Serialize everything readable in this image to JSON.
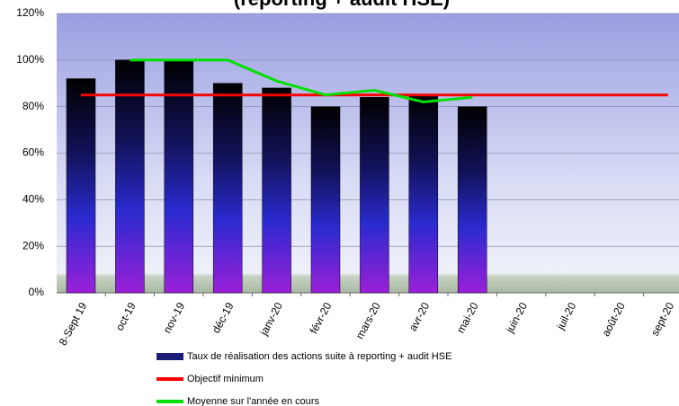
{
  "chart_data": {
    "type": "bar",
    "title": "(reporting + audit HSE)",
    "categories": [
      "8-Sept 19",
      "oct-19",
      "nov-19",
      "déc-19",
      "janv-20",
      "févr-20",
      "mars-20",
      "avr-20",
      "mai-20",
      "juin-20",
      "juil-20",
      "août-20",
      "sept-20"
    ],
    "series": [
      {
        "name": "Taux de réalisation des actions suite à reporting + audit HSE",
        "type": "bar",
        "color": "#1c1c7a",
        "values": [
          92,
          100,
          100,
          90,
          88,
          80,
          84,
          85,
          80,
          null,
          null,
          null,
          null
        ]
      },
      {
        "name": "Objectif minimum",
        "type": "line",
        "color": "#ff0000",
        "values": [
          85,
          85,
          85,
          85,
          85,
          85,
          85,
          85,
          85,
          85,
          85,
          85,
          85
        ]
      },
      {
        "name": "Moyenne sur l'année en cours",
        "type": "line",
        "color": "#00e000",
        "values": [
          null,
          100,
          100,
          100,
          91,
          85,
          87,
          82,
          84,
          null,
          null,
          null,
          null
        ]
      }
    ],
    "ylim": [
      0,
      120
    ],
    "yticks": [
      {
        "value": 0,
        "label": "0%"
      },
      {
        "value": 20,
        "label": "20%"
      },
      {
        "value": 40,
        "label": "40%"
      },
      {
        "value": 60,
        "label": "60%"
      },
      {
        "value": 80,
        "label": "80%"
      },
      {
        "value": 100,
        "label": "100%"
      },
      {
        "value": 120,
        "label": "120%"
      }
    ],
    "grid": true
  }
}
